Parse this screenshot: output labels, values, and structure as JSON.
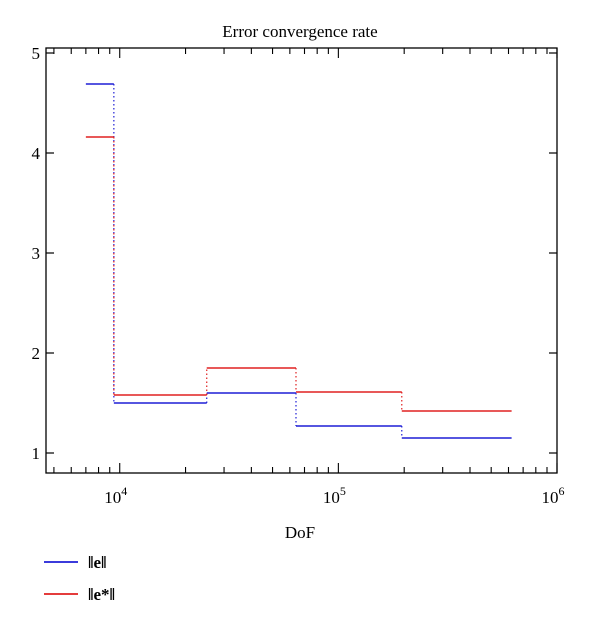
{
  "chart_data": {
    "type": "line",
    "title": "Error convergence rate",
    "xlabel": "DoF",
    "ylabel": "",
    "xscale": "log",
    "xlim": [
      4600,
      1000000
    ],
    "ylim": [
      0.8,
      5.05
    ],
    "xticks": [
      {
        "value": 10000,
        "base": "10",
        "exp": "4"
      },
      {
        "value": 100000,
        "base": "10",
        "exp": "5"
      },
      {
        "value": 1000000,
        "base": "10",
        "exp": "6"
      }
    ],
    "yticks": [
      1,
      2,
      3,
      4,
      5
    ],
    "grid": false,
    "legend_position": "bottom-left",
    "series": [
      {
        "name": "‖e‖",
        "color": "#1f1fd6",
        "segments": [
          {
            "x0": 7000,
            "x1": 9400,
            "y": 4.69
          },
          {
            "x0": 9400,
            "x1": 25000,
            "y": 1.5
          },
          {
            "x0": 25000,
            "x1": 64000,
            "y": 1.6
          },
          {
            "x0": 64000,
            "x1": 195000,
            "y": 1.27
          },
          {
            "x0": 195000,
            "x1": 620000,
            "y": 1.15
          }
        ]
      },
      {
        "name": "‖e*‖",
        "color": "#e02020",
        "segments": [
          {
            "x0": 7000,
            "x1": 9400,
            "y": 4.16
          },
          {
            "x0": 9400,
            "x1": 25000,
            "y": 1.58
          },
          {
            "x0": 25000,
            "x1": 64000,
            "y": 1.85
          },
          {
            "x0": 64000,
            "x1": 195000,
            "y": 1.61
          },
          {
            "x0": 195000,
            "x1": 620000,
            "y": 1.42
          }
        ]
      }
    ]
  }
}
